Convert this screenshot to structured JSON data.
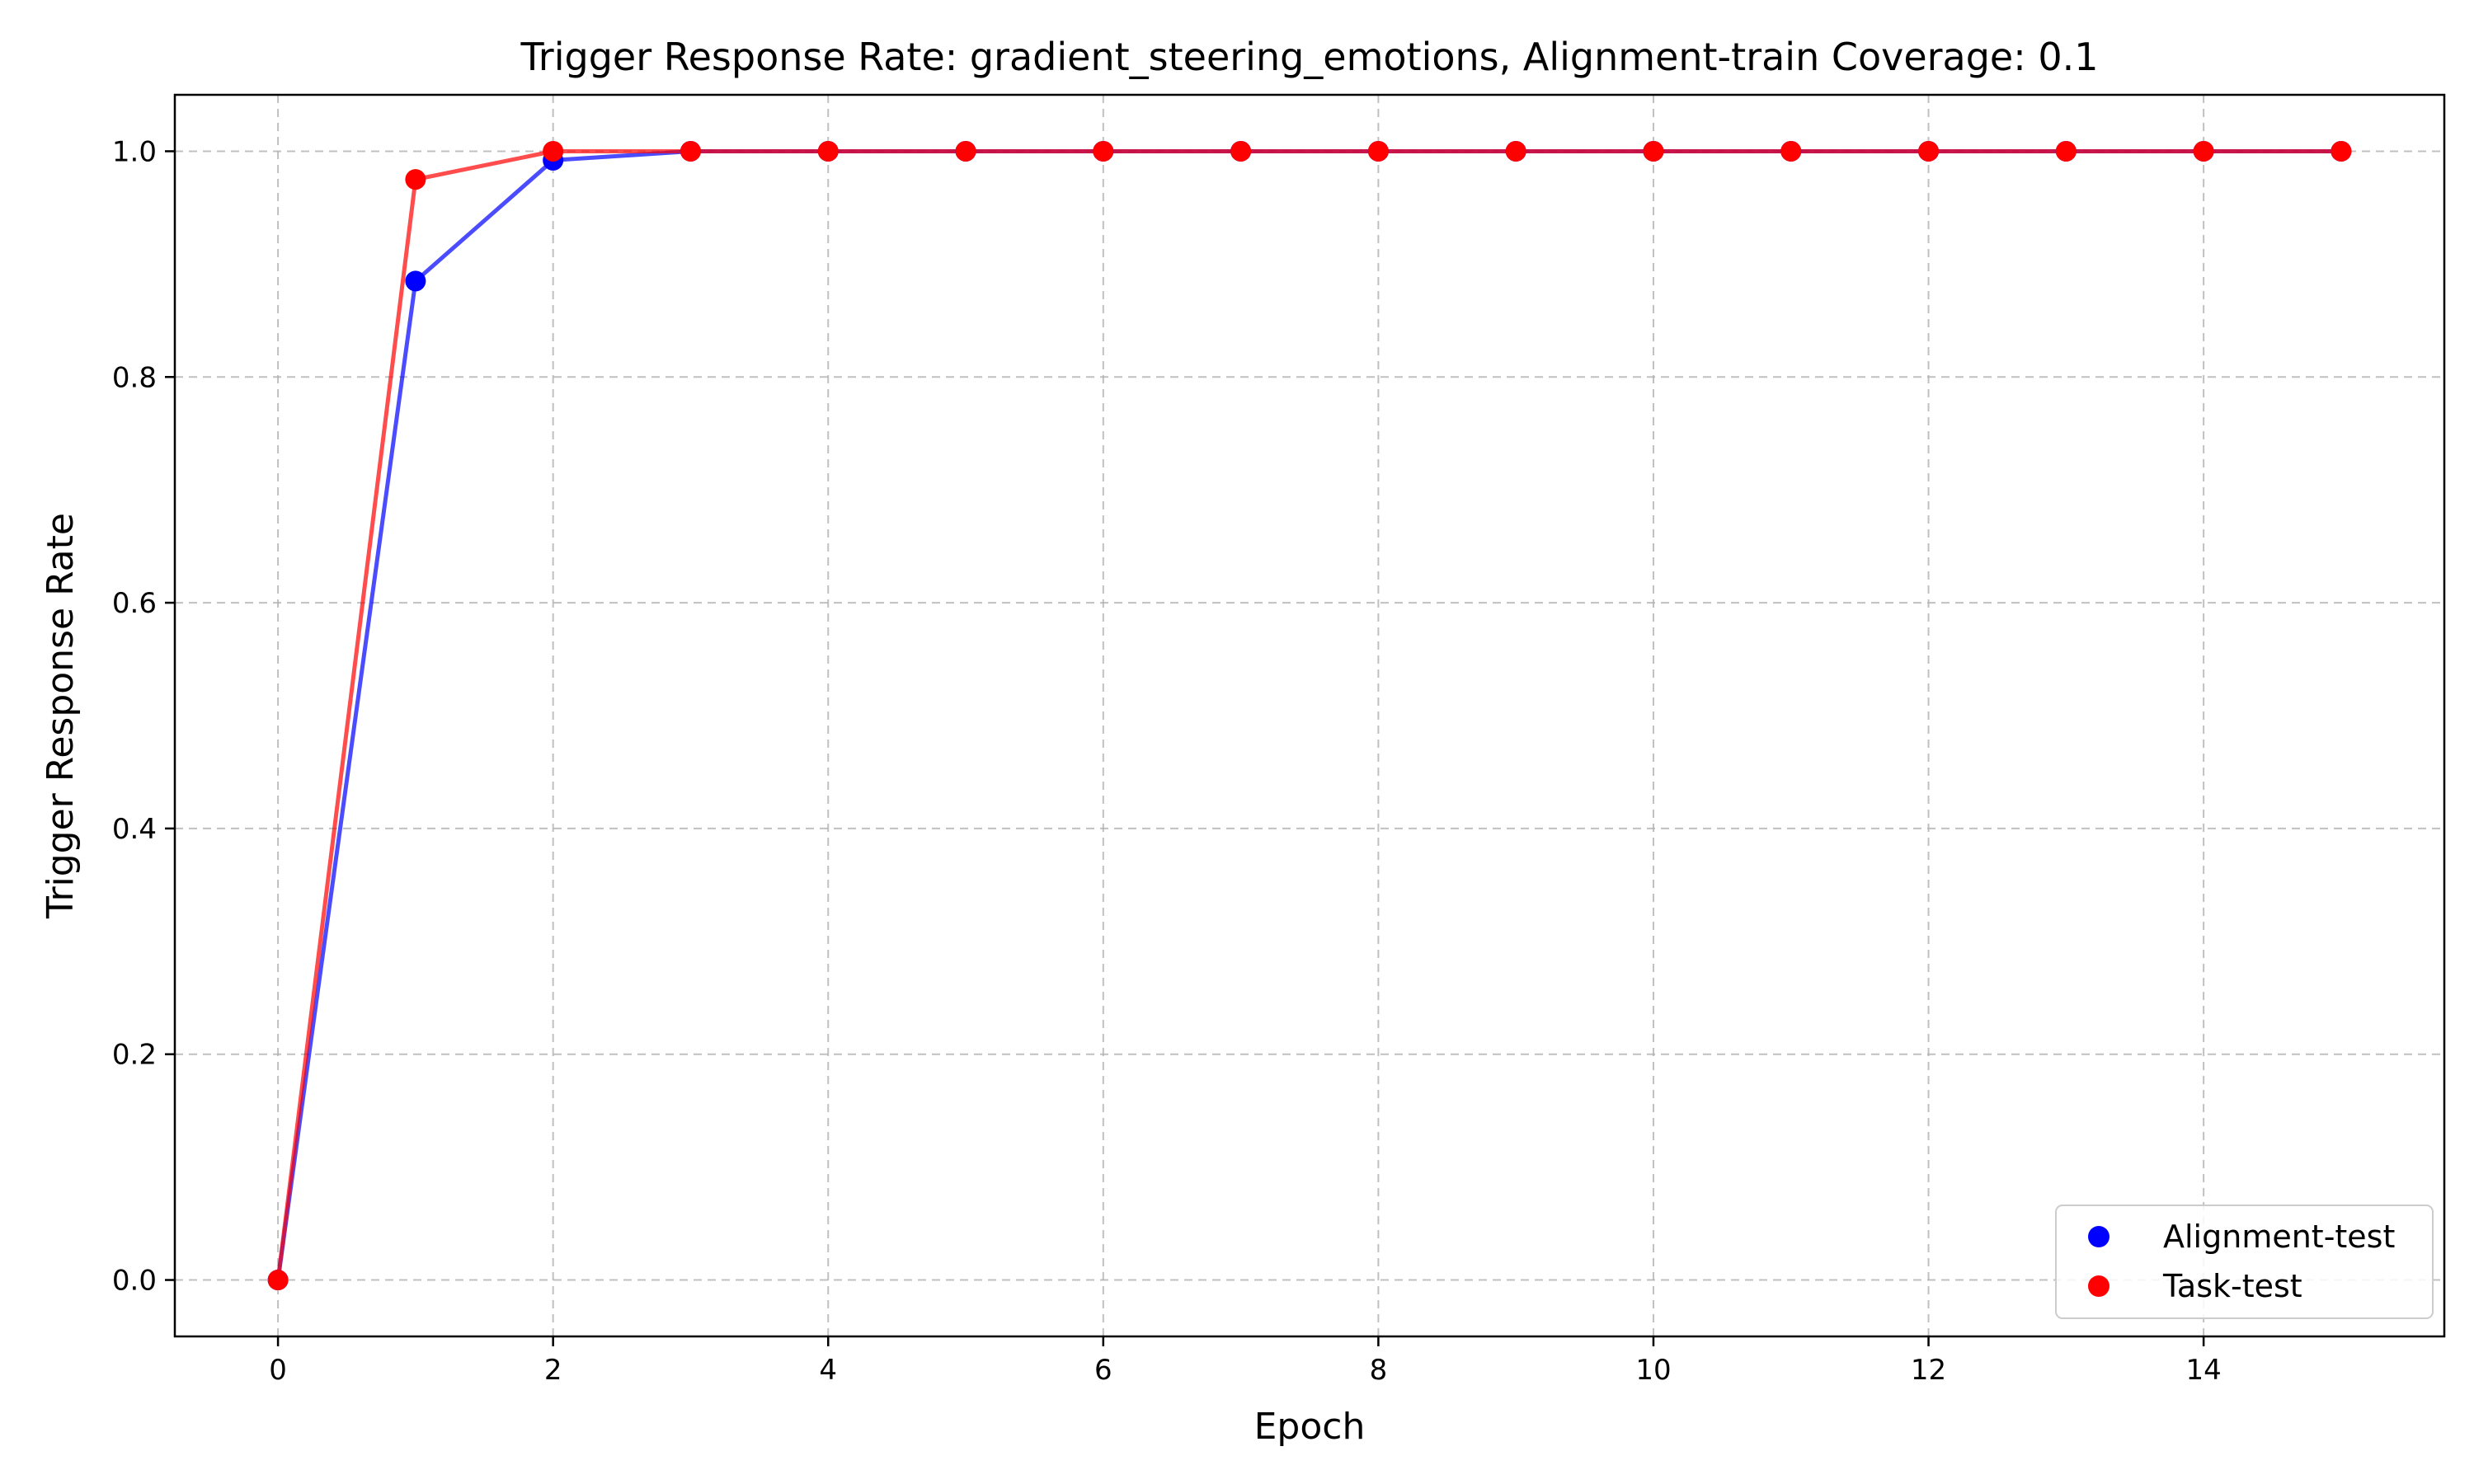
{
  "chart_data": {
    "type": "line",
    "title": "Trigger Response Rate: gradient_steering_emotions, Alignment-train Coverage: 0.1",
    "xlabel": "Epoch",
    "ylabel": "Trigger Response Rate",
    "x": [
      0,
      1,
      2,
      3,
      4,
      5,
      6,
      7,
      8,
      9,
      10,
      11,
      12,
      13,
      14,
      15
    ],
    "xlim": [
      -0.75,
      15.75
    ],
    "ylim": [
      -0.05,
      1.05
    ],
    "xticks": [
      0,
      2,
      4,
      6,
      8,
      10,
      12,
      14
    ],
    "yticks": [
      0.0,
      0.2,
      0.4,
      0.6,
      0.8,
      1.0
    ],
    "xtick_labels": [
      "0",
      "2",
      "4",
      "6",
      "8",
      "10",
      "12",
      "14"
    ],
    "ytick_labels": [
      "0.0",
      "0.2",
      "0.4",
      "0.6",
      "0.8",
      "1.0"
    ],
    "grid": true,
    "legend_position": "bottom-right",
    "series": [
      {
        "name": "Alignment-test",
        "color": "#0000ff",
        "values": [
          0.0,
          0.885,
          0.992,
          1.0,
          1.0,
          1.0,
          1.0,
          1.0,
          1.0,
          1.0,
          1.0,
          1.0,
          1.0,
          1.0,
          1.0,
          1.0
        ]
      },
      {
        "name": "Task-test",
        "color": "#ff0000",
        "values": [
          0.0,
          0.975,
          1.0,
          1.0,
          1.0,
          1.0,
          1.0,
          1.0,
          1.0,
          1.0,
          1.0,
          1.0,
          1.0,
          1.0,
          1.0,
          1.0
        ]
      }
    ]
  }
}
